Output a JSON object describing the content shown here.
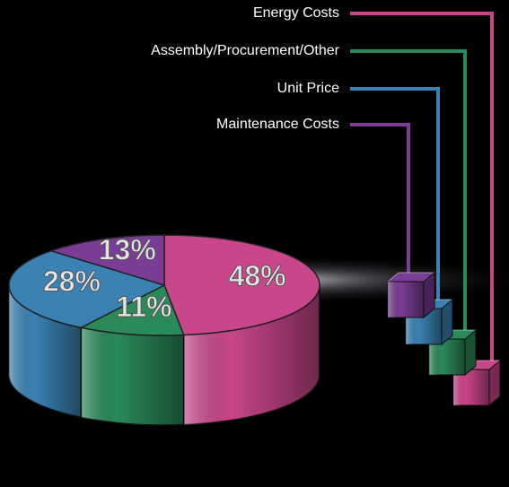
{
  "chart_data": {
    "type": "pie",
    "categories": [
      "Energy Costs",
      "Assembly/Procurement/Other",
      "Unit Price",
      "Maintenance Costs"
    ],
    "values": [
      48,
      11,
      28,
      13
    ],
    "value_labels": [
      "48%",
      "11%",
      "28%",
      "13%"
    ],
    "colors": [
      "#c8468a",
      "#2a8a58",
      "#3a82b4",
      "#7b3c96"
    ]
  }
}
